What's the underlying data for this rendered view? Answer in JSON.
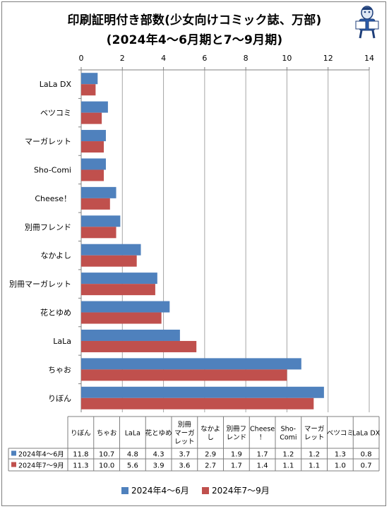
{
  "title_line1": "印刷証明付き部数(少女向けコミック誌、万部)",
  "title_line2": "(2024年4～6月期と7～9月期)",
  "colors": {
    "series1": "#4f81bd",
    "series2": "#c0504d",
    "grid": "#a6a6a6",
    "axis": "#7f7f7f"
  },
  "mascot_icon": "reading-person-icon",
  "chart_data": {
    "type": "bar",
    "orientation": "horizontal",
    "title": "印刷証明付き部数(少女向けコミック誌、万部) (2024年4～6月期と7～9月期)",
    "categories": [
      "りぼん",
      "ちゃお",
      "LaLa",
      "花とゆめ",
      "別冊マーガレット",
      "なかよし",
      "別冊フレンド",
      "Cheese！",
      "Sho-Comi",
      "マーガレット",
      "ベツコミ",
      "LaLa DX"
    ],
    "table_headers": [
      "りぼん",
      "ちゃお",
      "LaLa",
      "花とゆめ",
      "別冊\nマーガ\nレット",
      "なかよ\nし",
      "別冊フ\nレンド",
      "Cheese\n！",
      "Sho-\nComi",
      "マーガ\nレット",
      "ベツコミ",
      "LaLa DX"
    ],
    "series": [
      {
        "name": "2024年4～6月",
        "values": [
          11.8,
          10.7,
          4.8,
          4.3,
          3.7,
          2.9,
          1.9,
          1.7,
          1.2,
          1.2,
          1.3,
          0.8
        ]
      },
      {
        "name": "2024年7～9月",
        "values": [
          11.3,
          10.0,
          5.6,
          3.9,
          3.6,
          2.7,
          1.7,
          1.4,
          1.1,
          1.1,
          1.0,
          0.7
        ]
      }
    ],
    "xlim": [
      0,
      14
    ],
    "xticks": [
      0,
      2,
      4,
      6,
      8,
      10,
      12,
      14
    ],
    "grid": true,
    "axis_position": "top",
    "legend_position": "bottom",
    "data_table": true
  }
}
